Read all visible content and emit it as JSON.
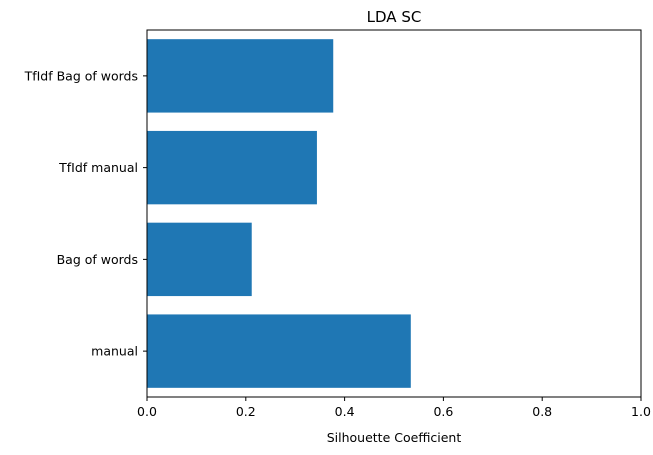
{
  "chart_data": {
    "type": "bar",
    "orientation": "horizontal",
    "title": "LDA SC",
    "xlabel": "Silhouette Coefficient",
    "ylabel": "",
    "categories": [
      "manual",
      "Bag of words",
      "TfIdf manual",
      "TfIdf Bag of words"
    ],
    "values": [
      0.534,
      0.212,
      0.344,
      0.377
    ],
    "xlim": [
      0,
      1.0
    ],
    "xticks": [
      "0.0",
      "0.2",
      "0.4",
      "0.6",
      "0.8",
      "1.0"
    ],
    "grid": false,
    "bar_color": "#1f77b4"
  }
}
